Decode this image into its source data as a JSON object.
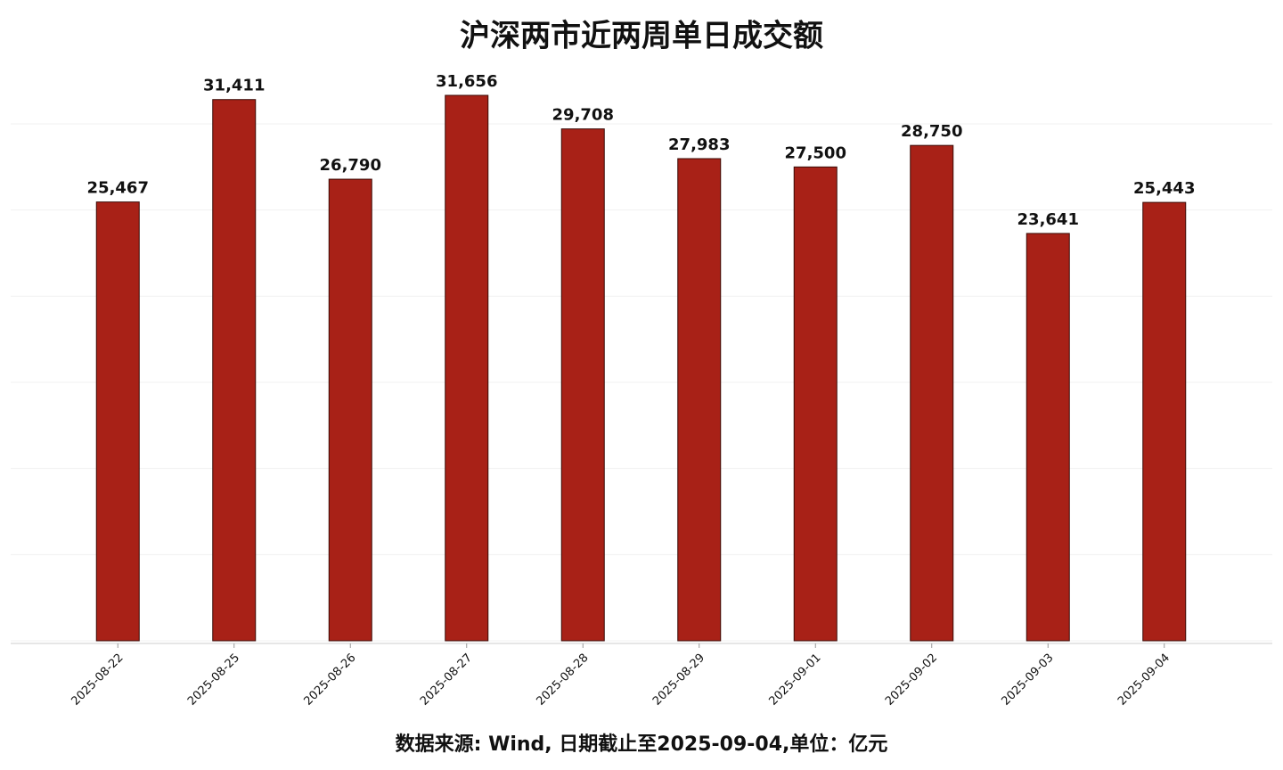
{
  "chart_data": {
    "type": "bar",
    "title": "沪深两市近两周单日成交额",
    "categories": [
      "2025-08-22",
      "2025-08-25",
      "2025-08-26",
      "2025-08-27",
      "2025-08-28",
      "2025-08-29",
      "2025-09-01",
      "2025-09-02",
      "2025-09-03",
      "2025-09-04"
    ],
    "values": [
      25467,
      31411,
      26790,
      31656,
      29708,
      27983,
      27500,
      28750,
      23641,
      25443
    ],
    "value_labels": [
      "25,467",
      "31,411",
      "26,790",
      "31,656",
      "29,708",
      "27,983",
      "27,500",
      "28,750",
      "23,641",
      "25,443"
    ],
    "color": "#a82117",
    "ylim": [
      0,
      33000
    ],
    "yticks": [
      0,
      5000,
      10000,
      15000,
      20000,
      25000,
      30000
    ],
    "grid": true,
    "caption": "数据来源: Wind, 日期截止至2025-09-04,单位：亿元"
  }
}
